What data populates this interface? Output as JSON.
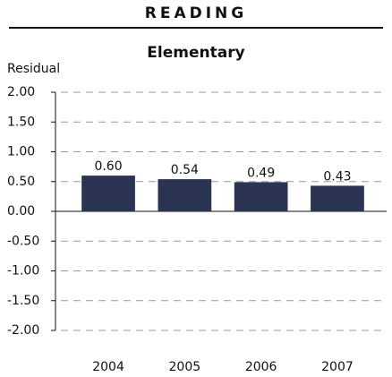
{
  "chart_data": {
    "type": "bar",
    "header": "READING",
    "title": "Elementary",
    "y_label": "Residual",
    "categories": [
      "2004",
      "2005",
      "2006",
      "2007"
    ],
    "values": [
      0.6,
      0.54,
      0.49,
      0.43
    ],
    "value_labels": [
      "0.60",
      "0.54",
      "0.49",
      "0.43"
    ],
    "color": "#2b3553",
    "ylim": [
      -2,
      2
    ],
    "yticks": [
      {
        "value": -2,
        "label": "-2.00"
      },
      {
        "value": -1.5,
        "label": "-1.50"
      },
      {
        "value": -1,
        "label": "-1.00"
      },
      {
        "value": -0.5,
        "label": "-0.50"
      },
      {
        "value": 0,
        "label": "0.00"
      },
      {
        "value": 0.5,
        "label": "0.50"
      },
      {
        "value": 1,
        "label": "1.00"
      },
      {
        "value": 1.5,
        "label": "1.50"
      },
      {
        "value": 2,
        "label": "2.00"
      }
    ],
    "grid": true
  }
}
